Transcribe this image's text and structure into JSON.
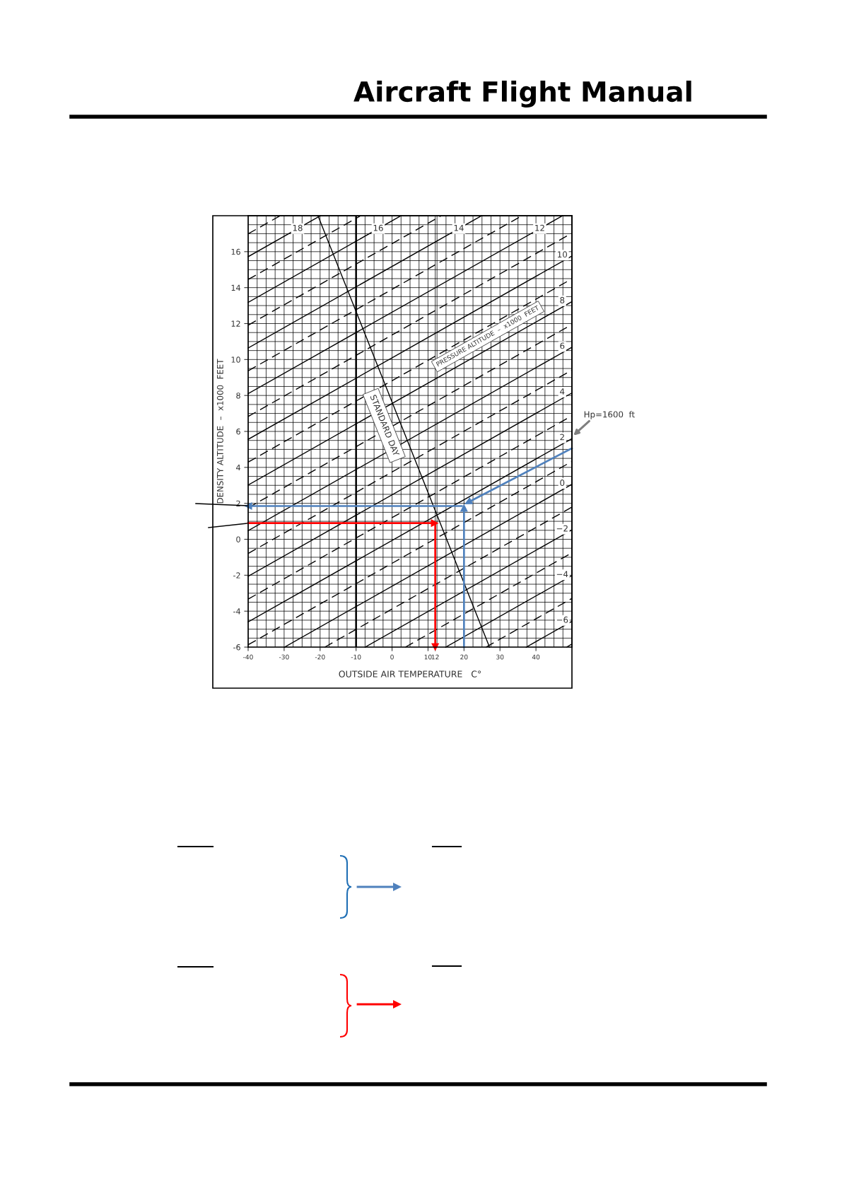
{
  "chart_data": {
    "type": "line",
    "title": "Aircraft Flight Manual",
    "xlabel": "OUTSIDE AIR TEMPERATURE   C°",
    "ylabel": "DENSITY ALTITUDE  –  x1000  FEET",
    "xlim": [
      -40,
      50
    ],
    "ylim": [
      -6,
      18
    ],
    "xticks": [
      -40,
      -30,
      -20,
      -10,
      0,
      10,
      12,
      20,
      30,
      40
    ],
    "yticks": [
      -6,
      -4,
      -2,
      0,
      2,
      4,
      6,
      8,
      10,
      12,
      14,
      16
    ],
    "grid": true,
    "ref_lines": [
      {
        "axis": "x",
        "value": -10,
        "color": "#000000"
      }
    ],
    "annotations": [
      "PRESSURE ALTITUDE  –  x1000  FEET",
      {
        "text": "Hp=1600  ft",
        "x": 50,
        "y": 5.7
      }
    ],
    "series": [
      {
        "color": "#000000",
        "line_style": "dashed",
        "x": [
          48.5,
          50
        ],
        "values": [
          -6,
          -5.83
        ]
      },
      {
        "name": "−6",
        "color": "#000000",
        "line_style": "solid",
        "x": [
          37.3,
          50
        ],
        "values": [
          -6,
          -4.56
        ]
      },
      {
        "color": "#000000",
        "line_style": "dashed",
        "x": [
          26.1,
          50
        ],
        "values": [
          -6,
          -3.29
        ]
      },
      {
        "name": "−4",
        "color": "#000000",
        "line_style": "solid",
        "x": [
          14.9,
          50
        ],
        "values": [
          -6,
          -2.02
        ]
      },
      {
        "color": "#000000",
        "line_style": "dashed",
        "x": [
          3.7,
          50
        ],
        "values": [
          -6,
          -0.75
        ]
      },
      {
        "name": "−2",
        "color": "#000000",
        "line_style": "solid",
        "x": [
          -7.5,
          50
        ],
        "values": [
          -6,
          0.52
        ]
      },
      {
        "color": "#000000",
        "line_style": "dashed",
        "x": [
          -18.7,
          50
        ],
        "values": [
          -6,
          1.79
        ]
      },
      {
        "name": "0",
        "color": "#000000",
        "line_style": "solid",
        "x": [
          -29.9,
          50
        ],
        "values": [
          -6,
          3.06
        ]
      },
      {
        "color": "#000000",
        "line_style": "dashed",
        "x": [
          -40,
          50
        ],
        "values": [
          -5.87,
          4.33
        ]
      },
      {
        "name": "2",
        "color": "#000000",
        "line_style": "solid",
        "x": [
          -40,
          50
        ],
        "values": [
          -4.6,
          5.6
        ]
      },
      {
        "color": "#000000",
        "line_style": "dashed",
        "x": [
          -40,
          50
        ],
        "values": [
          -3.33,
          6.87
        ]
      },
      {
        "name": "4",
        "color": "#000000",
        "line_style": "solid",
        "x": [
          -40,
          50
        ],
        "values": [
          -2.06,
          8.14
        ]
      },
      {
        "color": "#000000",
        "line_style": "dashed",
        "x": [
          -40,
          50
        ],
        "values": [
          -0.79,
          9.41
        ]
      },
      {
        "name": "6",
        "color": "#000000",
        "line_style": "solid",
        "x": [
          -40,
          50
        ],
        "values": [
          0.48,
          10.68
        ]
      },
      {
        "color": "#000000",
        "line_style": "dashed",
        "x": [
          -40,
          50
        ],
        "values": [
          1.75,
          11.95
        ]
      },
      {
        "name": "8",
        "color": "#000000",
        "line_style": "solid",
        "x": [
          -40,
          50
        ],
        "values": [
          3.02,
          13.22
        ]
      },
      {
        "color": "#000000",
        "line_style": "dashed",
        "x": [
          -40,
          50
        ],
        "values": [
          4.29,
          14.49
        ]
      },
      {
        "name": "10",
        "color": "#000000",
        "line_style": "solid",
        "x": [
          -40,
          50
        ],
        "values": [
          5.56,
          15.76
        ]
      },
      {
        "color": "#000000",
        "line_style": "dashed",
        "x": [
          -40,
          50
        ],
        "values": [
          6.83,
          17.03
        ]
      },
      {
        "name": "12",
        "color": "#000000",
        "line_style": "solid",
        "x": [
          -40,
          47.4
        ],
        "values": [
          8.1,
          18
        ]
      },
      {
        "color": "#000000",
        "line_style": "dashed",
        "x": [
          -40,
          36.1
        ],
        "values": [
          9.37,
          18
        ]
      },
      {
        "name": "14",
        "color": "#000000",
        "line_style": "solid",
        "x": [
          -40,
          24.9
        ],
        "values": [
          10.64,
          18
        ]
      },
      {
        "color": "#000000",
        "line_style": "dashed",
        "x": [
          -40,
          13.7
        ],
        "values": [
          11.91,
          18
        ]
      },
      {
        "name": "16",
        "color": "#000000",
        "line_style": "solid",
        "x": [
          -40,
          2.5
        ],
        "values": [
          13.18,
          18
        ]
      },
      {
        "color": "#000000",
        "line_style": "dashed",
        "x": [
          -40,
          -8.7
        ],
        "values": [
          14.45,
          18
        ]
      },
      {
        "name": "18",
        "color": "#000000",
        "line_style": "solid",
        "x": [
          -40,
          -19.9
        ],
        "values": [
          15.72,
          18
        ]
      },
      {
        "color": "#000000",
        "line_style": "dashed",
        "x": [
          -40,
          -31.1
        ],
        "values": [
          16.99,
          18
        ]
      },
      {
        "name": "STANDARD DAY",
        "color": "#000000",
        "line_style": "solid",
        "x": [
          -20.6,
          27.1
        ],
        "values": [
          18,
          -6
        ]
      },
      {
        "color": "#4f81bd",
        "line_style": "solid",
        "marker": "triangle",
        "x": [
          50,
          21.1
        ],
        "values": [
          5.06,
          2.05
        ]
      },
      {
        "color": "#4f81bd",
        "line_style": "solid",
        "marker": "triangle",
        "x": [
          20,
          20
        ],
        "values": [
          -6,
          1.75
        ]
      },
      {
        "color": "#4f81bd",
        "line_style": "solid",
        "marker": "triangle",
        "x": [
          19.4,
          -40
        ],
        "values": [
          1.85,
          1.85
        ]
      },
      {
        "color": "#ff0000",
        "line_style": "solid",
        "marker": "triangle",
        "x": [
          -40,
          11.9
        ],
        "values": [
          0.9,
          0.9
        ]
      },
      {
        "color": "#ff0000",
        "line_style": "solid",
        "marker": "triangle",
        "x": [
          12,
          12
        ],
        "values": [
          0.9,
          -6
        ]
      }
    ]
  }
}
